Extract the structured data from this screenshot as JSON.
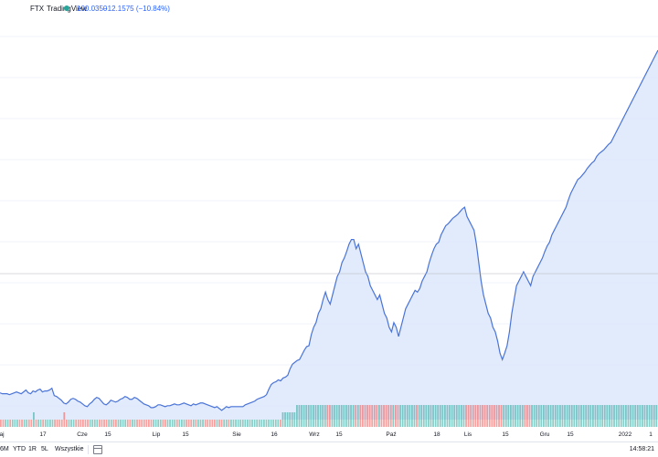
{
  "header": {
    "exchange": "FTX",
    "brand": "TradingView",
    "status_color": "#26a69a",
    "last_price": "100.0350",
    "change": "−12.1575 (−10.84%)"
  },
  "time_axis": {
    "labels": [
      "aj",
      "17",
      "Cze",
      "15",
      "Lip",
      "15",
      "Sie",
      "16",
      "Wrz",
      "15",
      "Paź",
      "18",
      "Lis",
      "15",
      "Gru",
      "15",
      "2022",
      "1"
    ]
  },
  "range_bar": {
    "ranges": [
      "6M",
      "YTD",
      "1R",
      "5L",
      "Wszystkie"
    ],
    "calendar_icon": "calendar-icon",
    "clock": "14:58:21"
  },
  "colors": {
    "line": "#4a74d8",
    "area": "#dbe6fb",
    "volume_up": "#26a69a",
    "volume_down": "#ef5350"
  },
  "chart_data": {
    "type": "area",
    "price_series": [
      0.29,
      0.28,
      0.28,
      0.28,
      0.27,
      0.28,
      0.29,
      0.3,
      0.29,
      0.28,
      0.3,
      0.32,
      0.29,
      0.28,
      0.31,
      0.3,
      0.32,
      0.33,
      0.3,
      0.31,
      0.31,
      0.32,
      0.34,
      0.26,
      0.25,
      0.23,
      0.21,
      0.18,
      0.17,
      0.19,
      0.22,
      0.23,
      0.22,
      0.2,
      0.19,
      0.17,
      0.15,
      0.14,
      0.17,
      0.19,
      0.22,
      0.24,
      0.23,
      0.2,
      0.17,
      0.16,
      0.18,
      0.21,
      0.2,
      0.19,
      0.2,
      0.22,
      0.23,
      0.25,
      0.24,
      0.22,
      0.22,
      0.24,
      0.23,
      0.21,
      0.19,
      0.17,
      0.16,
      0.15,
      0.13,
      0.13,
      0.14,
      0.16,
      0.16,
      0.15,
      0.14,
      0.15,
      0.15,
      0.16,
      0.17,
      0.16,
      0.16,
      0.17,
      0.18,
      0.17,
      0.16,
      0.15,
      0.17,
      0.16,
      0.17,
      0.18,
      0.18,
      0.17,
      0.16,
      0.15,
      0.14,
      0.13,
      0.14,
      0.12,
      0.1,
      0.12,
      0.14,
      0.13,
      0.14,
      0.14,
      0.14,
      0.14,
      0.14,
      0.14,
      0.16,
      0.17,
      0.18,
      0.19,
      0.2,
      0.22,
      0.23,
      0.24,
      0.25,
      0.27,
      0.33,
      0.38,
      0.4,
      0.41,
      0.43,
      0.42,
      0.45,
      0.46,
      0.48,
      0.55,
      0.6,
      0.62,
      0.64,
      0.65,
      0.7,
      0.75,
      0.79,
      0.8,
      0.92,
      1.0,
      1.05,
      1.15,
      1.2,
      1.3,
      1.38,
      1.3,
      1.25,
      1.35,
      1.45,
      1.55,
      1.6,
      1.7,
      1.75,
      1.82,
      1.9,
      1.95,
      1.95,
      1.85,
      1.9,
      1.8,
      1.7,
      1.6,
      1.55,
      1.45,
      1.4,
      1.35,
      1.3,
      1.35,
      1.25,
      1.15,
      1.1,
      1.0,
      0.95,
      1.05,
      1.0,
      0.9,
      1.0,
      1.1,
      1.2,
      1.25,
      1.3,
      1.35,
      1.4,
      1.38,
      1.42,
      1.5,
      1.55,
      1.6,
      1.7,
      1.78,
      1.85,
      1.9,
      1.92,
      2.0,
      2.05,
      2.1,
      2.12,
      2.15,
      2.18,
      2.2,
      2.22,
      2.25,
      2.28,
      2.3,
      2.2,
      2.15,
      2.1,
      2.05,
      1.9,
      1.7,
      1.5,
      1.35,
      1.25,
      1.15,
      1.1,
      1.0,
      0.95,
      0.85,
      0.72,
      0.65,
      0.72,
      0.8,
      0.95,
      1.15,
      1.3,
      1.45,
      1.5,
      1.55,
      1.6,
      1.55,
      1.5,
      1.45,
      1.55,
      1.6,
      1.65,
      1.7,
      1.75,
      1.82,
      1.88,
      1.92,
      2.0,
      2.05,
      2.1,
      2.15,
      2.2,
      2.25,
      2.3,
      2.38,
      2.45,
      2.5,
      2.55,
      2.6,
      2.62,
      2.65,
      2.68,
      2.72,
      2.75,
      2.78,
      2.8,
      2.85,
      2.88,
      2.9,
      2.92,
      2.95,
      2.98,
      3.0,
      3.05,
      3.1,
      3.15,
      3.2,
      3.25,
      3.3,
      3.35,
      3.4,
      3.45,
      3.5,
      3.55,
      3.6,
      3.65,
      3.7,
      3.75,
      3.8,
      3.85,
      3.9,
      3.95,
      4.0
    ],
    "volume_series": [
      1,
      1,
      1,
      1,
      1,
      1,
      1,
      1,
      1,
      1,
      1,
      1,
      1,
      1,
      2,
      1,
      1,
      1,
      1,
      1,
      1,
      1,
      1,
      1,
      1,
      1,
      1,
      2,
      1,
      1,
      1,
      1,
      1,
      1,
      1,
      1,
      1,
      1,
      1,
      1,
      1,
      1,
      1,
      1,
      1,
      1,
      1,
      1,
      1,
      1,
      1,
      1,
      1,
      1,
      1,
      1,
      1,
      1,
      1,
      1,
      1,
      1,
      1,
      1,
      1,
      1,
      1,
      1,
      1,
      1,
      1,
      1,
      1,
      1,
      1,
      1,
      1,
      1,
      1,
      1,
      1,
      1,
      1,
      1,
      1,
      1,
      1,
      1,
      1,
      1,
      1,
      1,
      1,
      1,
      1,
      1,
      1,
      1,
      1,
      1,
      1,
      1,
      1,
      1,
      1,
      1,
      1,
      1,
      1,
      1,
      1,
      1,
      1,
      1,
      1,
      1,
      1,
      1,
      1,
      1,
      2,
      2,
      2,
      2,
      2,
      2,
      3,
      3,
      3,
      3,
      3,
      3,
      3,
      3,
      3,
      3,
      3,
      3,
      3,
      3,
      3,
      3,
      3,
      3,
      3,
      3,
      3,
      3,
      3,
      3,
      3,
      3,
      3,
      3,
      3,
      3,
      3,
      3,
      3,
      3,
      3,
      3,
      3,
      3,
      3,
      3,
      3,
      3,
      3,
      3,
      3,
      3,
      3,
      3,
      3,
      3,
      3,
      3,
      3,
      3,
      3,
      3,
      3,
      3,
      3,
      3,
      3,
      3,
      3,
      3,
      3,
      3,
      3,
      3,
      3,
      3,
      3,
      3,
      3,
      3,
      3,
      3,
      3,
      3,
      3,
      3,
      3,
      3,
      3,
      3,
      3,
      3,
      3,
      3,
      3,
      3,
      3,
      3,
      3,
      3,
      3,
      3,
      3,
      3,
      3,
      3,
      3,
      3,
      3,
      3,
      3,
      3,
      3,
      3,
      3,
      3,
      3,
      3,
      3,
      3,
      3,
      3,
      3,
      3,
      3,
      3,
      3,
      3,
      3,
      3,
      3,
      3,
      3,
      3,
      3,
      3,
      3,
      3,
      3,
      3,
      3,
      3,
      3,
      3,
      3,
      3,
      3,
      3,
      3,
      3,
      3,
      3,
      3,
      3,
      3,
      3,
      3,
      3,
      3,
      3
    ]
  }
}
